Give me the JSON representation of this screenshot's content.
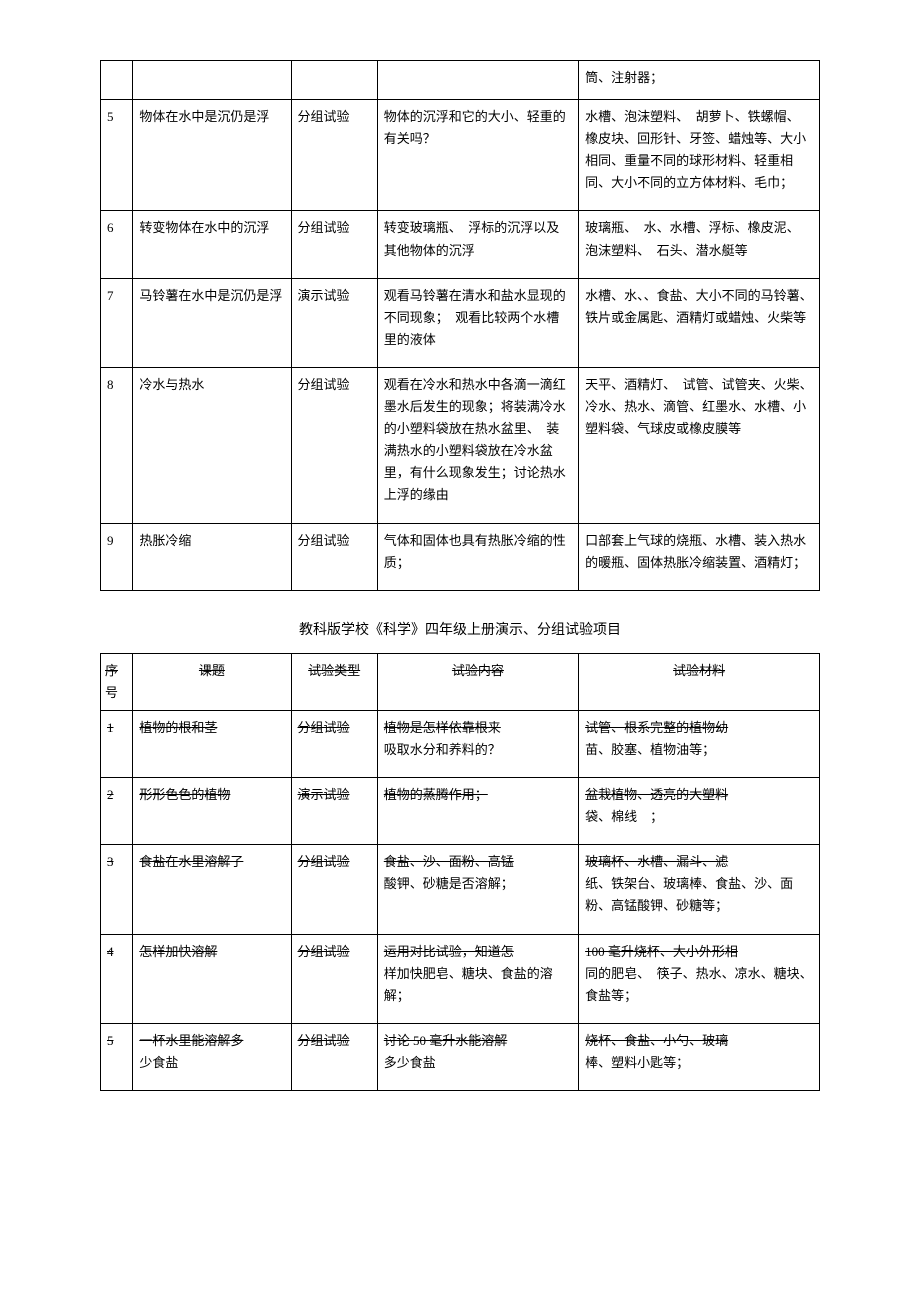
{
  "table1": {
    "rows": [
      {
        "num": "",
        "topic": "",
        "type": "",
        "content": "",
        "material": "筒、注射器；"
      },
      {
        "num": "5",
        "topic": "物体在水中是沉仍是浮",
        "type": "分组试验",
        "content": "物体的沉浮和它的大小、轻重的有关吗？",
        "material": "水槽、泡沫塑料、　胡萝卜、铁螺帽、　橡皮块、回形针、牙签、蜡烛等、大小相同、重量不同的球形材料、轻重相同、大小不同的立方体材料、毛巾；"
      },
      {
        "num": "6",
        "topic": "转变物体在水中的沉浮",
        "type": "分组试验",
        "content": "转变玻璃瓶、　浮标的沉浮以及其他物体的沉浮",
        "material": "玻璃瓶、　水、水槽、浮标、橡皮泥、　泡沫塑料、　石头、潜水艇等"
      },
      {
        "num": "7",
        "topic": "马铃薯在水中是沉仍是浮",
        "type": "演示试验",
        "content": "观看马铃薯在清水和盐水显现的不同现象；　观看比较两个水槽里的液体",
        "material": "水槽、水、、食盐、大小不同的马铃薯、铁片或金属匙、酒精灯或蜡烛、火柴等"
      },
      {
        "num": "8",
        "topic": "冷水与热水",
        "type": "分组试验",
        "content": "观看在冷水和热水中各滴一滴红墨水后发生的现象；将装满冷水的小塑料袋放在热水盆里、　装满热水的小塑料袋放在冷水盆里，有什么现象发生；讨论热水上浮的缘由",
        "material": "天平、酒精灯、　试管、试管夹、火柴、　冷水、热水、滴管、红墨水、水槽、小塑料袋、气球皮或橡皮膜等"
      },
      {
        "num": "9",
        "topic": "热胀冷缩",
        "type": "分组试验",
        "content": "气体和固体也具有热胀冷缩的性质；",
        "material": "口部套上气球的烧瓶、水槽、装入热水的暖瓶、固体热胀冷缩装置、酒精灯；"
      }
    ]
  },
  "sectionTitle": "教科版学校《科学》四年级上册演示、分组试验项目",
  "table2": {
    "headers": {
      "num": "序",
      "num2": "号",
      "topic": "课题",
      "type": "试验类型",
      "content": "试验内容",
      "material": "试验材料"
    },
    "rows": [
      {
        "num": "1",
        "topic": "植物的根和茎",
        "type": "分组试验",
        "content_s": "植物是怎样依靠根来",
        "content_n": "吸取水分和养料的？",
        "material_s": "试管、根系完整的植物幼",
        "material_n": "苗、胶塞、植物油等；"
      },
      {
        "num": "2",
        "topic": "形形色色的植物",
        "type": "演示试验",
        "content_s": "植物的蒸腾作用；",
        "content_n": "",
        "material_s": "盆栽植物、透亮的大塑料",
        "material_n": "袋、棉线　；"
      },
      {
        "num": "3",
        "topic": "食盐在水里溶解了",
        "type": "分组试验",
        "content_s": "食盐、沙、面粉、高锰",
        "content_n": "酸钾、砂糖是否溶解；",
        "material_s": "玻璃杯、水槽、漏斗、滤",
        "material_n": "纸、铁架台、玻璃棒、食盐、沙、面粉、高锰酸钾、砂糖等；"
      },
      {
        "num": "4",
        "topic": "怎样加快溶解",
        "type": "分组试验",
        "content_s": "运用对比试验，知道怎",
        "content_n": "样加快肥皂、糖块、食盐的溶解；",
        "material_s": "100 毫升烧杯、大小外形相",
        "material_n": "同的肥皂、　筷子、热水、凉水、糖块、食盐等；"
      },
      {
        "num": "5",
        "topic": "一杯水里能溶解多",
        "topic_n": "少食盐",
        "type": "分组试验",
        "content_s": "讨论 50 毫升水能溶解",
        "content_n": "多少食盐",
        "material_s": "烧杯、食盐、小勺、玻璃",
        "material_n": "棒、塑料小匙等；"
      }
    ]
  }
}
